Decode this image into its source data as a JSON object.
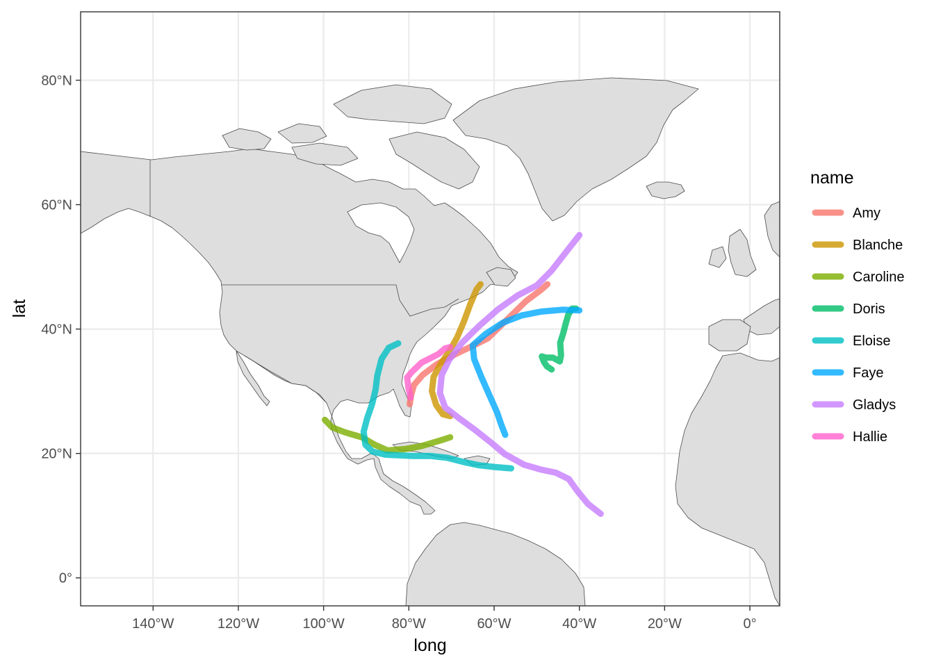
{
  "chart_data": {
    "type": "map-line",
    "title": "",
    "xlabel": "long",
    "ylabel": "lat",
    "xlim": [
      -157,
      7
    ],
    "ylim": [
      -4.5,
      91
    ],
    "x_ticks": [
      {
        "value": -140,
        "label": "140°W"
      },
      {
        "value": -120,
        "label": "120°W"
      },
      {
        "value": -100,
        "label": "100°W"
      },
      {
        "value": -80,
        "label": "80°W"
      },
      {
        "value": -60,
        "label": "60°W"
      },
      {
        "value": -40,
        "label": "40°W"
      },
      {
        "value": -20,
        "label": "20°W"
      },
      {
        "value": 0,
        "label": "0°"
      }
    ],
    "y_ticks": [
      {
        "value": 0,
        "label": "0°"
      },
      {
        "value": 20,
        "label": "20°N"
      },
      {
        "value": 40,
        "label": "40°N"
      },
      {
        "value": 60,
        "label": "60°N"
      },
      {
        "value": 80,
        "label": "80°N"
      }
    ],
    "legend": {
      "title": "name",
      "placement": "right"
    },
    "series": [
      {
        "name": "Amy",
        "color": "#F8766D",
        "points": [
          [
            -79.8,
            27.9
          ],
          [
            -79.5,
            29.3
          ],
          [
            -78.8,
            31.0
          ],
          [
            -76.8,
            32.6
          ],
          [
            -73.5,
            34.3
          ],
          [
            -69.0,
            36.0
          ],
          [
            -65.0,
            37.3
          ],
          [
            -61.5,
            38.5
          ],
          [
            -57.0,
            41.5
          ],
          [
            -52.5,
            44.5
          ],
          [
            -49.0,
            46.3
          ],
          [
            -47.5,
            47.2
          ]
        ]
      },
      {
        "name": "Blanche",
        "color": "#CD9600",
        "points": [
          [
            -70.3,
            26.0
          ],
          [
            -72.0,
            26.3
          ],
          [
            -73.6,
            27.8
          ],
          [
            -74.6,
            30.0
          ],
          [
            -74.2,
            32.3
          ],
          [
            -72.6,
            34.3
          ],
          [
            -70.6,
            36.3
          ],
          [
            -68.7,
            38.6
          ],
          [
            -67.1,
            41.2
          ],
          [
            -65.6,
            44.0
          ],
          [
            -64.1,
            46.4
          ],
          [
            -63.2,
            47.2
          ]
        ]
      },
      {
        "name": "Caroline",
        "color": "#7CAE00",
        "points": [
          [
            -99.7,
            25.4
          ],
          [
            -98.0,
            24.2
          ],
          [
            -95.0,
            23.4
          ],
          [
            -91.0,
            22.6
          ],
          [
            -88.0,
            21.4
          ],
          [
            -85.0,
            20.5
          ],
          [
            -81.0,
            20.7
          ],
          [
            -77.0,
            21.2
          ],
          [
            -73.0,
            22.0
          ],
          [
            -70.3,
            22.6
          ]
        ]
      },
      {
        "name": "Doris",
        "color": "#00BE67",
        "points": [
          [
            -46.5,
            33.5
          ],
          [
            -47.6,
            34.0
          ],
          [
            -48.3,
            34.7
          ],
          [
            -48.8,
            35.6
          ],
          [
            -47.8,
            35.4
          ],
          [
            -46.2,
            35.4
          ],
          [
            -44.6,
            34.8
          ],
          [
            -44.3,
            35.8
          ],
          [
            -44.5,
            37.8
          ],
          [
            -43.8,
            39.3
          ],
          [
            -43.2,
            40.9
          ],
          [
            -42.6,
            42.3
          ],
          [
            -41.7,
            43.3
          ],
          [
            -40.8,
            43.3
          ]
        ]
      },
      {
        "name": "Eloise",
        "color": "#00BFC4",
        "points": [
          [
            -56.0,
            17.6
          ],
          [
            -59.5,
            17.8
          ],
          [
            -63.5,
            18.1
          ],
          [
            -67.0,
            18.6
          ],
          [
            -71.0,
            19.3
          ],
          [
            -75.0,
            19.6
          ],
          [
            -79.0,
            19.6
          ],
          [
            -82.5,
            19.7
          ],
          [
            -85.5,
            19.8
          ],
          [
            -88.5,
            20.3
          ],
          [
            -90.2,
            21.4
          ],
          [
            -90.6,
            23.5
          ],
          [
            -89.8,
            25.6
          ],
          [
            -88.6,
            28.0
          ],
          [
            -87.8,
            30.3
          ],
          [
            -87.4,
            32.5
          ],
          [
            -86.4,
            35.2
          ],
          [
            -84.7,
            37.0
          ],
          [
            -82.5,
            37.7
          ]
        ]
      },
      {
        "name": "Faye",
        "color": "#00A9FF",
        "points": [
          [
            -57.4,
            23.0
          ],
          [
            -58.3,
            24.6
          ],
          [
            -59.3,
            26.6
          ],
          [
            -61.0,
            29.2
          ],
          [
            -63.0,
            32.3
          ],
          [
            -64.7,
            35.2
          ],
          [
            -65.0,
            37.4
          ],
          [
            -62.0,
            39.2
          ],
          [
            -58.0,
            41.0
          ],
          [
            -53.5,
            42.2
          ],
          [
            -49.0,
            42.8
          ],
          [
            -44.0,
            43.1
          ],
          [
            -40.0,
            43.0
          ]
        ]
      },
      {
        "name": "Gladys",
        "color": "#C77CFF",
        "points": [
          [
            -35.0,
            10.3
          ],
          [
            -38.0,
            11.9
          ],
          [
            -40.5,
            14.0
          ],
          [
            -42.5,
            15.9
          ],
          [
            -45.5,
            16.9
          ],
          [
            -49.0,
            17.4
          ],
          [
            -53.0,
            18.2
          ],
          [
            -57.5,
            19.9
          ],
          [
            -61.0,
            21.9
          ],
          [
            -64.7,
            23.9
          ],
          [
            -68.5,
            25.8
          ],
          [
            -71.5,
            27.4
          ],
          [
            -72.7,
            29.7
          ],
          [
            -72.3,
            32.6
          ],
          [
            -70.5,
            35.1
          ],
          [
            -67.5,
            37.8
          ],
          [
            -63.5,
            40.5
          ],
          [
            -59.0,
            43.2
          ],
          [
            -54.5,
            45.4
          ],
          [
            -50.0,
            47.0
          ],
          [
            -46.5,
            49.4
          ],
          [
            -43.0,
            52.5
          ],
          [
            -40.0,
            55.1
          ]
        ]
      },
      {
        "name": "Hallie",
        "color": "#FF61CC",
        "points": [
          [
            -79.6,
            29.0
          ],
          [
            -80.1,
            30.6
          ],
          [
            -80.4,
            32.2
          ],
          [
            -79.3,
            33.1
          ],
          [
            -77.0,
            34.6
          ],
          [
            -75.0,
            35.3
          ],
          [
            -73.0,
            36.0
          ],
          [
            -71.5,
            36.9
          ],
          [
            -70.3,
            37.1
          ]
        ]
      }
    ]
  }
}
